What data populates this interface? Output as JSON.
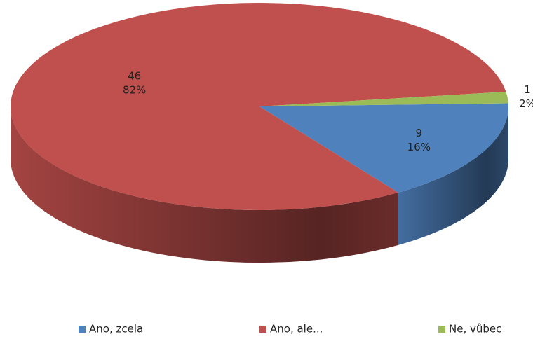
{
  "chart_data": {
    "type": "pie",
    "categories": [
      "Ano, zcela",
      "Ano, ale...",
      "Ne, vůbec"
    ],
    "values": [
      9,
      46,
      1
    ],
    "percent_labels": [
      "16%",
      "82%",
      "2%"
    ],
    "colors": [
      "#4f81bd",
      "#c0504d",
      "#9bbb59"
    ],
    "legend": "bottom"
  }
}
